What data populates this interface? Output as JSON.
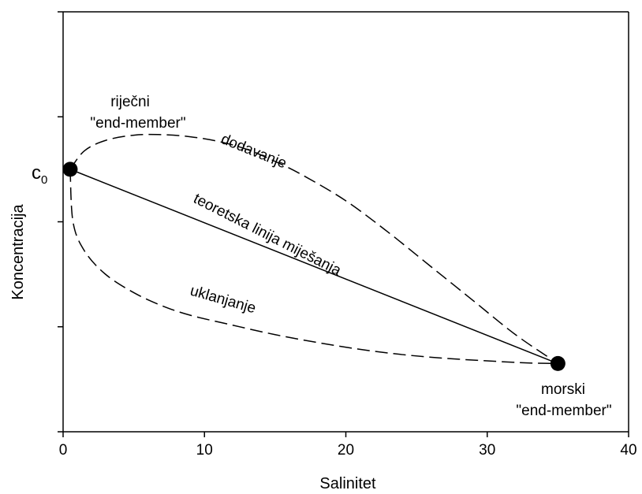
{
  "chart_data": {
    "type": "line",
    "title": "",
    "xlabel": "Salinitet",
    "ylabel": "Koncentracija",
    "xlim": [
      0,
      40
    ],
    "x_ticks": [
      0,
      10,
      20,
      30,
      40
    ],
    "x_tick_labels": [
      "0",
      "10",
      "20",
      "30",
      "40"
    ],
    "ylim": [
      0,
      8
    ],
    "y_ticks": [
      0,
      2,
      4,
      6,
      8
    ],
    "y_tick_labels": [
      "",
      "",
      "",
      "",
      ""
    ],
    "grid": false,
    "legend": "none",
    "points": [
      {
        "name": "c0",
        "x": 0.5,
        "y": 5.0
      },
      {
        "name": "sea",
        "x": 35,
        "y": 1.3
      }
    ],
    "series": [
      {
        "name": "teoretska linija miješanja",
        "style": "solid",
        "x": [
          0.5,
          35
        ],
        "y": [
          5.0,
          1.3
        ]
      },
      {
        "name": "dodavanje",
        "style": "dashed",
        "x": [
          0.5,
          1.5,
          3,
          5,
          7,
          9,
          11,
          13,
          15,
          17,
          20,
          23,
          26,
          29,
          32,
          35
        ],
        "y": [
          5.0,
          5.35,
          5.55,
          5.65,
          5.66,
          5.62,
          5.53,
          5.38,
          5.15,
          4.88,
          4.4,
          3.8,
          3.15,
          2.5,
          1.85,
          1.3
        ]
      },
      {
        "name": "uklanjanje",
        "style": "dashed",
        "x": [
          0.5,
          0.7,
          1.5,
          3,
          5,
          7,
          9,
          12,
          15,
          18,
          21,
          24,
          27,
          30,
          33,
          35
        ],
        "y": [
          5.0,
          4.0,
          3.45,
          3.0,
          2.65,
          2.4,
          2.22,
          2.03,
          1.85,
          1.7,
          1.57,
          1.47,
          1.4,
          1.35,
          1.31,
          1.3
        ]
      }
    ],
    "annotations": {
      "c0_main": "c",
      "c0_sub": "0",
      "river_line1": "riječni",
      "river_line2": "\"end-member\"",
      "sea_line1": "morski",
      "sea_line2": "\"end-member\"",
      "addition": "dodavanje",
      "mixing": "teoretska linija miješanja",
      "removal": "uklanjanje"
    },
    "colors": {
      "line": "#000000",
      "point": "#000000"
    }
  }
}
